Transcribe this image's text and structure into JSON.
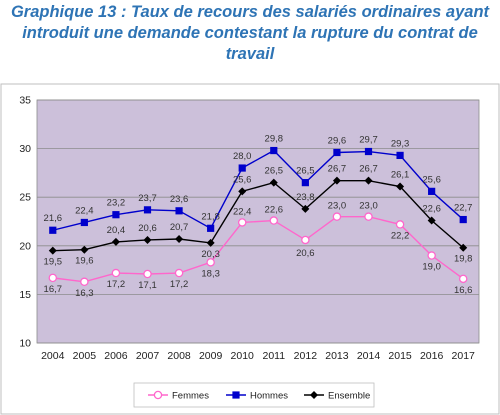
{
  "title_line1": "Graphique 13 : Taux de recours des salariés ordinaires ayant",
  "title_line2": "introduit une demande contestant la rupture du contrat de",
  "title_line3": "travail",
  "chart_data": {
    "type": "line",
    "title": "Graphique 13 : Taux de recours des salariés ordinaires ayant introduit une demande contestant la rupture du contrat de travail",
    "categories": [
      "2004",
      "2005",
      "2006",
      "2007",
      "2008",
      "2009",
      "2010",
      "2011",
      "2012",
      "2013",
      "2014",
      "2015",
      "2016",
      "2017"
    ],
    "ylim": [
      10,
      35
    ],
    "yticks": [
      "10",
      "15",
      "20",
      "25",
      "30",
      "35"
    ],
    "grid": true,
    "legend_position": "bottom",
    "plot_background": "#ccc0da",
    "series": [
      {
        "name": "Femmes",
        "color": "#ff66cc",
        "marker": "circle-open",
        "values": [
          16.7,
          16.3,
          17.2,
          17.1,
          17.2,
          18.3,
          22.4,
          22.6,
          20.6,
          23.0,
          23.0,
          22.2,
          19.0,
          16.6
        ],
        "labels": [
          "16,7",
          "16,3",
          "17,2",
          "17,1",
          "17,2",
          "18,3",
          "22,4",
          "22,6",
          "20,6",
          "23,0",
          "23,0",
          "22,2",
          "19,0",
          "16,6"
        ]
      },
      {
        "name": "Hommes",
        "color": "#0000cc",
        "marker": "square",
        "values": [
          21.6,
          22.4,
          23.2,
          23.7,
          23.6,
          21.8,
          28.0,
          29.8,
          26.5,
          29.6,
          29.7,
          29.3,
          25.6,
          22.7
        ],
        "labels": [
          "21,6",
          "22,4",
          "23,2",
          "23,7",
          "23,6",
          "21,8",
          "28,0",
          "29,8",
          "26,5",
          "29,6",
          "29,7",
          "29,3",
          "25,6",
          "22,7"
        ]
      },
      {
        "name": "Ensemble",
        "color": "#000000",
        "marker": "diamond",
        "values": [
          19.5,
          19.6,
          20.4,
          20.6,
          20.7,
          20.3,
          25.6,
          26.5,
          23.8,
          26.7,
          26.7,
          26.1,
          22.6,
          19.8
        ],
        "labels": [
          "19,5",
          "19,6",
          "20,4",
          "20,6",
          "20,7",
          "20,3",
          "25,6",
          "26,5",
          "23,8",
          "26,7",
          "26,7",
          "26,1",
          "22,6",
          "19,8"
        ]
      }
    ]
  }
}
